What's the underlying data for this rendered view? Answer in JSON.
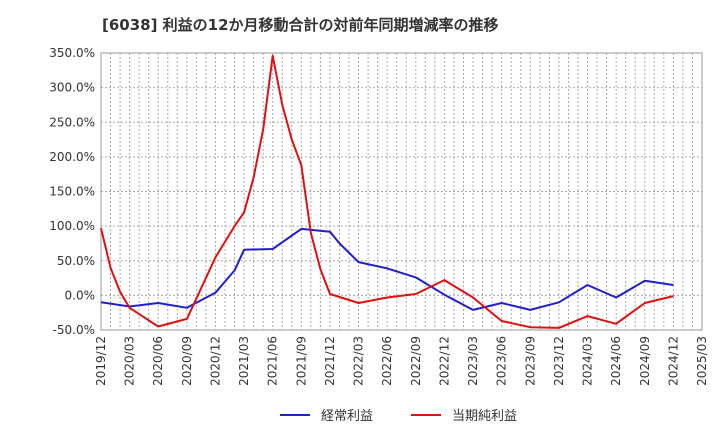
{
  "chart_data": {
    "type": "line",
    "title": "[6038]  利益の12か月移動合計の対前年同期増減率の推移",
    "xlabel": "",
    "ylabel": "",
    "x_ticks": [
      "2019/12",
      "2020/03",
      "2020/06",
      "2020/09",
      "2020/12",
      "2021/03",
      "2021/06",
      "2021/09",
      "2021/12",
      "2022/03",
      "2022/06",
      "2022/09",
      "2022/12",
      "2023/03",
      "2023/06",
      "2023/09",
      "2023/12",
      "2024/03",
      "2024/06",
      "2024/09",
      "2024/12",
      "2025/03"
    ],
    "y_ticks": [
      "-50.0%",
      "0.0%",
      "50.0%",
      "100.0%",
      "150.0%",
      "200.0%",
      "250.0%",
      "300.0%",
      "350.0%"
    ],
    "ylim": [
      -50,
      350
    ],
    "grid": true,
    "legend_position": "bottom-center",
    "series": [
      {
        "name": "経常利益",
        "color": "#1f1fcc",
        "points": [
          [
            "2019/12",
            -10
          ],
          [
            "2020/03",
            -16
          ],
          [
            "2020/06",
            -11
          ],
          [
            "2020/09",
            -18
          ],
          [
            "2020/12",
            4
          ],
          [
            "2021/02",
            36
          ],
          [
            "2021/03",
            66
          ],
          [
            "2021/06",
            67
          ],
          [
            "2021/09",
            96
          ],
          [
            "2021/12",
            92
          ],
          [
            "2022/01",
            75
          ],
          [
            "2022/03",
            48
          ],
          [
            "2022/06",
            39
          ],
          [
            "2022/09",
            26
          ],
          [
            "2022/12",
            1
          ],
          [
            "2023/03",
            -21
          ],
          [
            "2023/06",
            -11
          ],
          [
            "2023/09",
            -21
          ],
          [
            "2023/12",
            -10
          ],
          [
            "2024/03",
            15
          ],
          [
            "2024/06",
            -3
          ],
          [
            "2024/09",
            21
          ],
          [
            "2024/12",
            15
          ]
        ]
      },
      {
        "name": "当期純利益",
        "color": "#e01010",
        "points": [
          [
            "2019/12",
            97
          ],
          [
            "2020/01",
            40
          ],
          [
            "2020/02",
            5
          ],
          [
            "2020/03",
            -18
          ],
          [
            "2020/06",
            -45
          ],
          [
            "2020/09",
            -34
          ],
          [
            "2020/12",
            55
          ],
          [
            "2021/02",
            100
          ],
          [
            "2021/03",
            120
          ],
          [
            "2021/04",
            170
          ],
          [
            "2021/05",
            240
          ],
          [
            "2021/06",
            346
          ],
          [
            "2021/07",
            275
          ],
          [
            "2021/08",
            225
          ],
          [
            "2021/09",
            188
          ],
          [
            "2021/10",
            90
          ],
          [
            "2021/11",
            38
          ],
          [
            "2021/12",
            2
          ],
          [
            "2022/03",
            -11
          ],
          [
            "2022/06",
            -3
          ],
          [
            "2022/09",
            2
          ],
          [
            "2022/12",
            22
          ],
          [
            "2023/03",
            -3
          ],
          [
            "2023/06",
            -37
          ],
          [
            "2023/09",
            -46
          ],
          [
            "2023/12",
            -47
          ],
          [
            "2024/03",
            -30
          ],
          [
            "2024/06",
            -41
          ],
          [
            "2024/09",
            -11
          ],
          [
            "2024/12",
            -1
          ]
        ]
      }
    ]
  }
}
